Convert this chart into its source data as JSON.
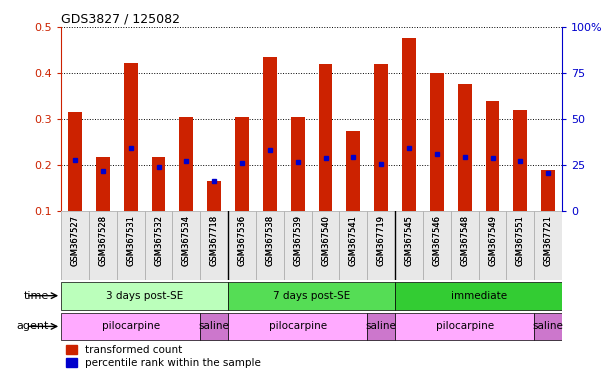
{
  "title": "GDS3827 / 125082",
  "samples": [
    "GSM367527",
    "GSM367528",
    "GSM367531",
    "GSM367532",
    "GSM367534",
    "GSM367718",
    "GSM367536",
    "GSM367538",
    "GSM367539",
    "GSM367540",
    "GSM367541",
    "GSM367719",
    "GSM367545",
    "GSM367546",
    "GSM367548",
    "GSM367549",
    "GSM367551",
    "GSM367721"
  ],
  "red_values": [
    0.315,
    0.218,
    0.422,
    0.218,
    0.305,
    0.165,
    0.305,
    0.435,
    0.305,
    0.42,
    0.275,
    0.42,
    0.475,
    0.4,
    0.375,
    0.34,
    0.32,
    0.19
  ],
  "blue_values": [
    0.212,
    0.188,
    0.237,
    0.195,
    0.21,
    0.165,
    0.205,
    0.232,
    0.207,
    0.215,
    0.218,
    0.203,
    0.237,
    0.225,
    0.218,
    0.215,
    0.21,
    0.183
  ],
  "ymin": 0.1,
  "ymax": 0.5,
  "y_ticks": [
    0.1,
    0.2,
    0.3,
    0.4,
    0.5
  ],
  "y_right_ticks": [
    0,
    25,
    50,
    75,
    100
  ],
  "y_right_labels": [
    "0",
    "25",
    "50",
    "75",
    "100%"
  ],
  "time_groups": [
    {
      "label": "3 days post-SE",
      "start": 0,
      "end": 6,
      "color": "#bbffbb"
    },
    {
      "label": "7 days post-SE",
      "start": 6,
      "end": 12,
      "color": "#55dd55"
    },
    {
      "label": "immediate",
      "start": 12,
      "end": 18,
      "color": "#33cc33"
    }
  ],
  "agent_groups": [
    {
      "label": "pilocarpine",
      "start": 0,
      "end": 5,
      "color": "#ffaaff"
    },
    {
      "label": "saline",
      "start": 5,
      "end": 6,
      "color": "#cc77cc"
    },
    {
      "label": "pilocarpine",
      "start": 6,
      "end": 11,
      "color": "#ffaaff"
    },
    {
      "label": "saline",
      "start": 11,
      "end": 12,
      "color": "#cc77cc"
    },
    {
      "label": "pilocarpine",
      "start": 12,
      "end": 17,
      "color": "#ffaaff"
    },
    {
      "label": "saline",
      "start": 17,
      "end": 18,
      "color": "#cc77cc"
    }
  ],
  "red_color": "#cc2200",
  "blue_color": "#0000cc",
  "bar_width": 0.5,
  "legend_red": "transformed count",
  "legend_blue": "percentile rank within the sample",
  "xlabel_time": "time",
  "xlabel_agent": "agent",
  "background_color": "#ffffff",
  "plot_bg_color": "#ffffff",
  "sample_bg_color": "#e8e8e8"
}
